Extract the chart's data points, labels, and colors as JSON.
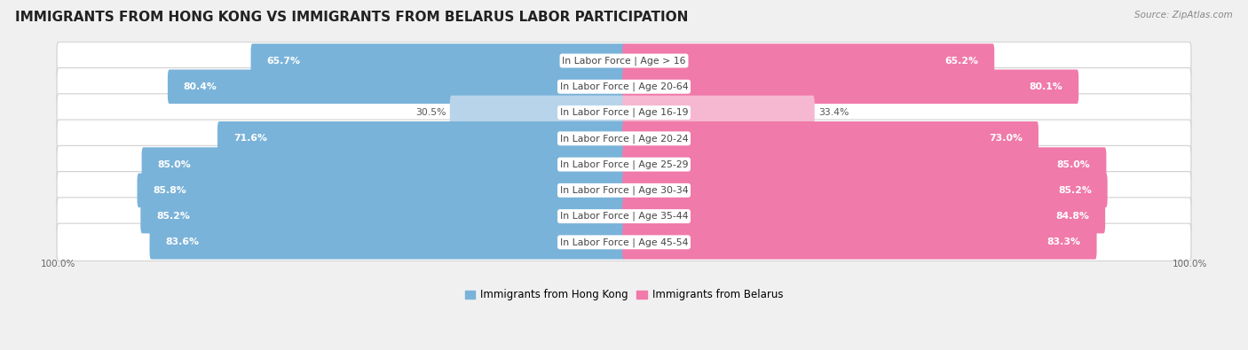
{
  "title": "IMMIGRANTS FROM HONG KONG VS IMMIGRANTS FROM BELARUS LABOR PARTICIPATION",
  "source": "Source: ZipAtlas.com",
  "categories": [
    "In Labor Force | Age > 16",
    "In Labor Force | Age 20-64",
    "In Labor Force | Age 16-19",
    "In Labor Force | Age 20-24",
    "In Labor Force | Age 25-29",
    "In Labor Force | Age 30-34",
    "In Labor Force | Age 35-44",
    "In Labor Force | Age 45-54"
  ],
  "hong_kong_values": [
    65.7,
    80.4,
    30.5,
    71.6,
    85.0,
    85.8,
    85.2,
    83.6
  ],
  "belarus_values": [
    65.2,
    80.1,
    33.4,
    73.0,
    85.0,
    85.2,
    84.8,
    83.3
  ],
  "hk_color": "#7ab3d9",
  "hk_color_light": "#b8d4ea",
  "by_color": "#f07aaa",
  "by_color_light": "#f5b8d0",
  "bg_color": "#f0f0f0",
  "row_bg_color": "#ffffff",
  "title_fontsize": 11,
  "label_fontsize": 7.8,
  "value_fontsize": 7.8,
  "legend_fontsize": 8.5,
  "legend_hk": "Immigrants from Hong Kong",
  "legend_by": "Immigrants from Belarus",
  "axis_label": "100.0%"
}
